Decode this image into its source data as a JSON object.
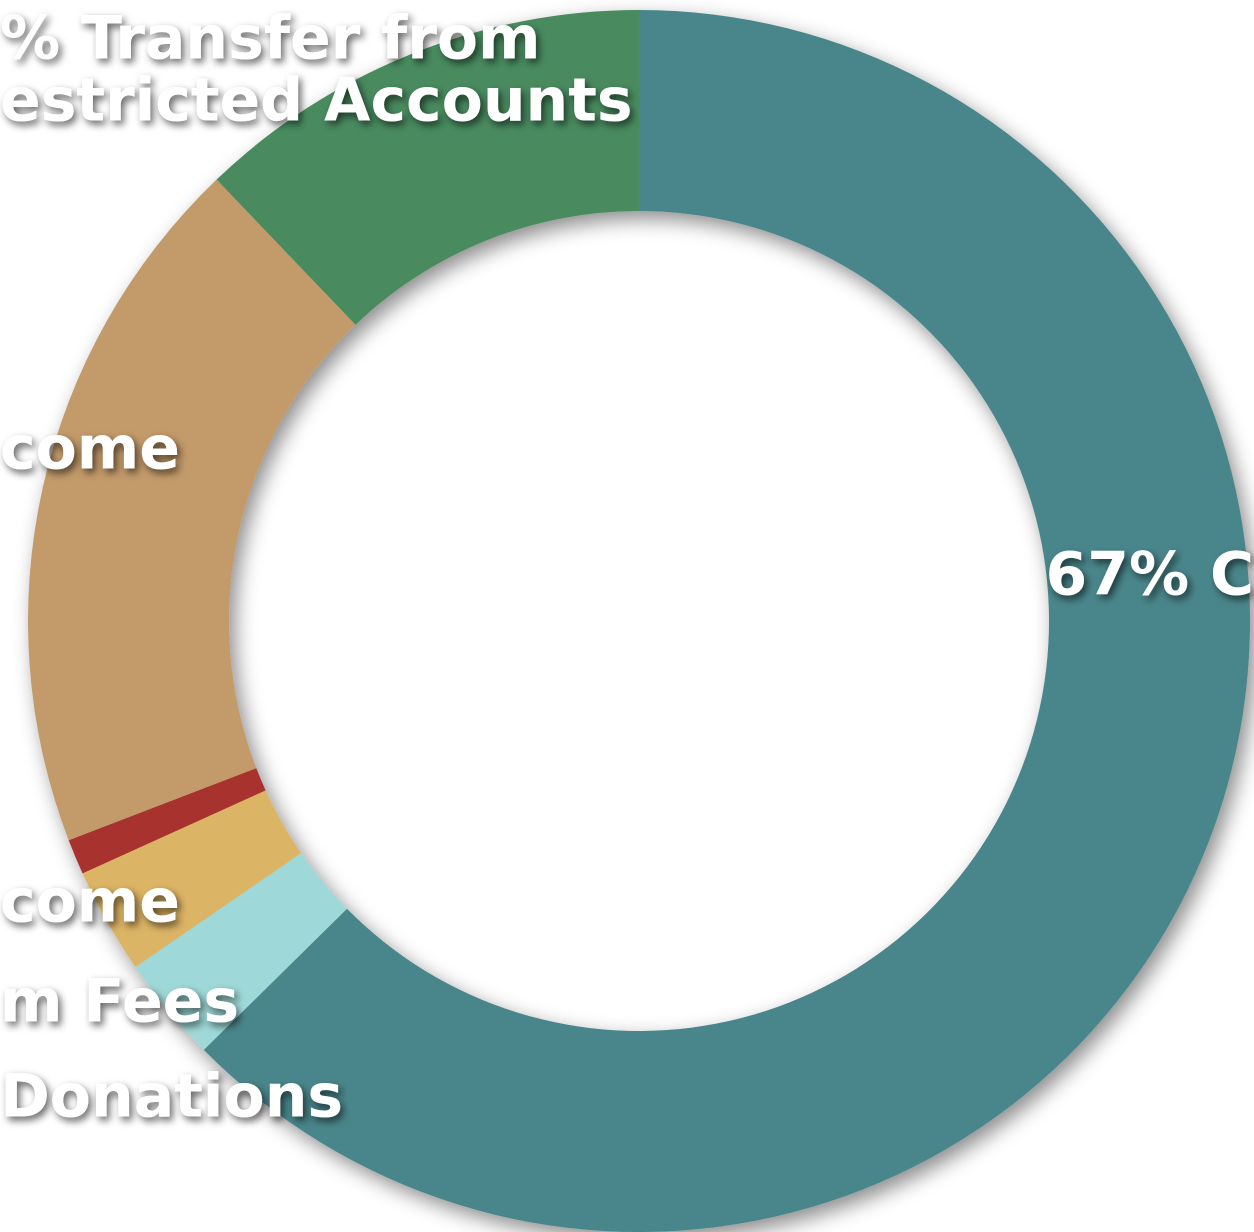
{
  "chart_data": {
    "type": "pie",
    "donut": true,
    "values": [
      67,
      3,
      3,
      1,
      20,
      13
    ],
    "colors": [
      "#4a868b",
      "#9fd8d8",
      "#dcb465",
      "#a8302f",
      "#c39a6b",
      "#4a8b5e"
    ],
    "labels": [
      [
        "67% C"
      ],
      [
        "Donations"
      ],
      [
        "m Fees"
      ],
      [
        "come"
      ],
      [
        "come"
      ],
      [
        "% Transfer from",
        "estricted Accounts"
      ]
    ]
  }
}
